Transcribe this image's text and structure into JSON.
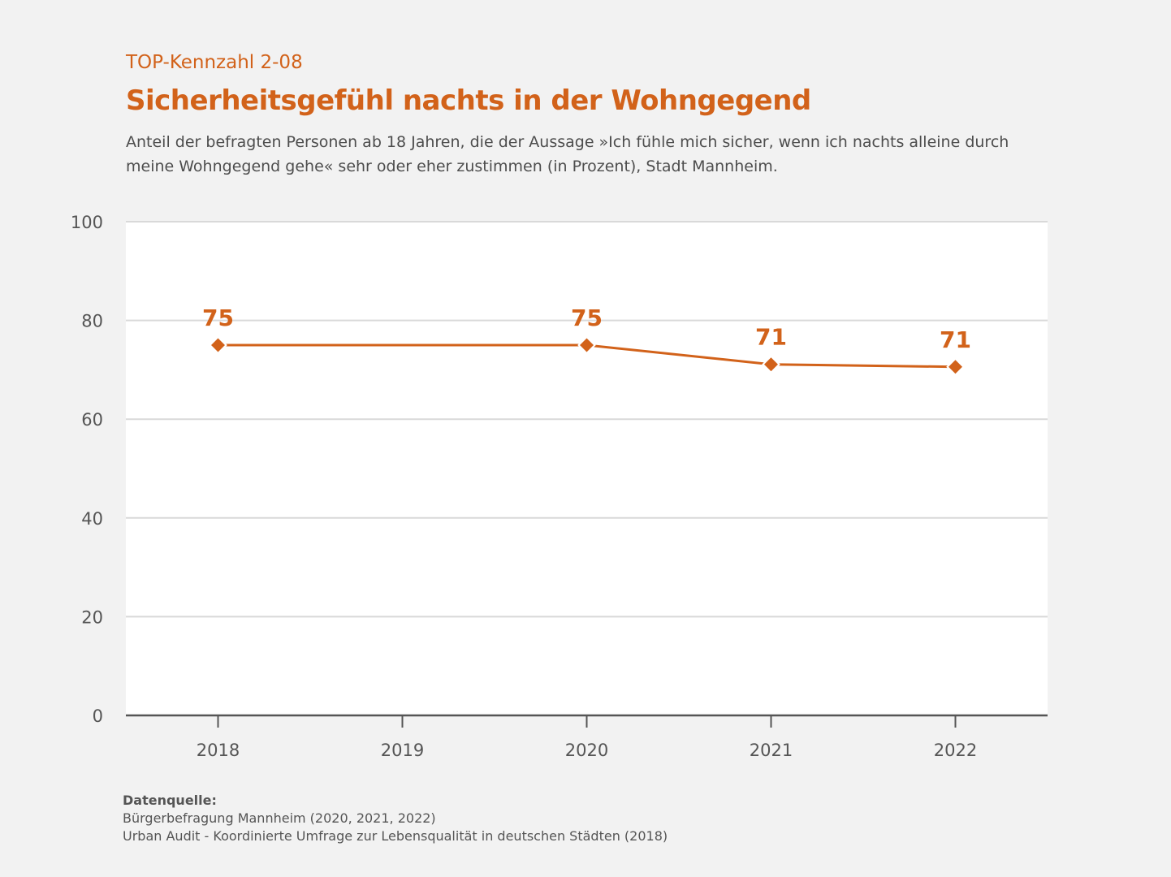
{
  "header": {
    "kicker": "TOP-Kennzahl 2-08",
    "title": "Sicherheitsgefühl nachts in der Wohngegend",
    "subtitle": "Anteil der befragten Personen ab 18 Jahren, die der Aussage »Ich fühle mich sicher, wenn ich nachts alleine durch meine Wohngegend gehe« sehr oder eher zustimmen (in Prozent), Stadt Mannheim."
  },
  "colors": {
    "accent": "#d2621a",
    "grid": "#d9d9d9",
    "axis": "#555555",
    "plot_bg": "#ffffff"
  },
  "chart_data": {
    "type": "line",
    "title": "Sicherheitsgefühl nachts in der Wohngegend",
    "xlabel": "",
    "ylabel": "",
    "x_ticks": [
      "2018",
      "2019",
      "2020",
      "2021",
      "2022"
    ],
    "y_ticks": [
      "0",
      "20",
      "40",
      "60",
      "80",
      "100"
    ],
    "ylim": [
      0,
      100
    ],
    "grid": true,
    "legend": "none",
    "series": [
      {
        "name": "Sicherheitsgefühl",
        "x": [
          2018,
          2020,
          2021,
          2022
        ],
        "values": [
          75.0,
          75.0,
          71.1,
          70.6
        ],
        "labels": [
          "75",
          "75",
          "71",
          "71"
        ]
      }
    ]
  },
  "source": {
    "heading": "Datenquelle:",
    "lines": [
      "Bürgerbefragung Mannheim (2020, 2021, 2022)",
      "Urban Audit - Koordinierte Umfrage zur Lebensqualität in deutschen Städten (2018)"
    ]
  }
}
